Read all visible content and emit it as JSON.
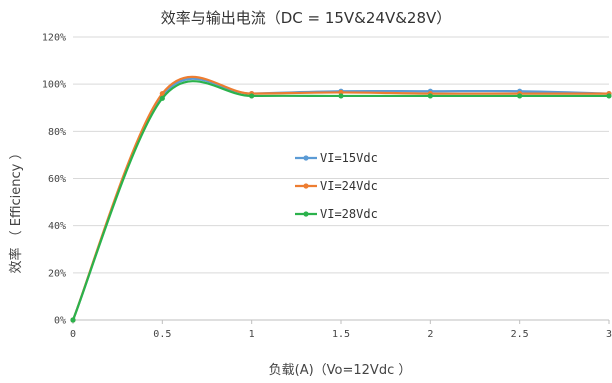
{
  "chart_data": {
    "type": "line",
    "title": "效率与输出电流（DC = 15V&24V&28V）",
    "xlabel": "负载(A)（Vo=12Vdc ）",
    "ylabel": "效率 （ Efficiency ）",
    "x_ticks": [
      "0",
      "0.5",
      "1",
      "1.5",
      "2",
      "2.5",
      "3"
    ],
    "y_ticks": [
      "0%",
      "20%",
      "40%",
      "60%",
      "80%",
      "100%",
      "120%"
    ],
    "xlim": [
      0,
      3
    ],
    "ylim": [
      0,
      120
    ],
    "grid": "horizontal",
    "legend_position": "center",
    "x": [
      0,
      0.5,
      1,
      1.5,
      2,
      2.5,
      3
    ],
    "series": [
      {
        "name": "VI=15Vdc",
        "color": "#5b9bd5",
        "values": [
          0,
          95,
          96,
          97,
          97,
          97,
          96
        ]
      },
      {
        "name": "VI=24Vdc",
        "color": "#ed7d31",
        "values": [
          0,
          96,
          96,
          96.5,
          96,
          96,
          96
        ]
      },
      {
        "name": "VI=28Vdc",
        "color": "#2bb24c",
        "values": [
          0,
          94,
          95,
          95,
          95,
          95,
          95
        ]
      }
    ]
  }
}
